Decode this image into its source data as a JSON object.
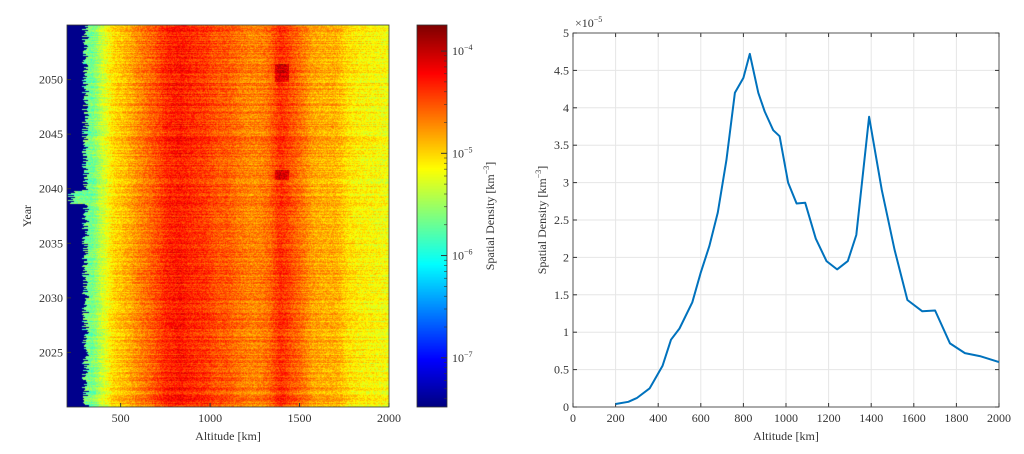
{
  "chart_data": [
    {
      "type": "heatmap",
      "xlabel": "Altitude [km]",
      "ylabel": "Year",
      "xlim": [
        200,
        2000
      ],
      "ylim": [
        2020,
        2055
      ],
      "xticks": [
        500,
        1000,
        1500,
        2000
      ],
      "yticks": [
        2025,
        2030,
        2035,
        2040,
        2045,
        2050
      ],
      "colormap": "jet",
      "colorbar": {
        "label": "Spatial Density [km^-3]",
        "label_base": "Spatial Density [km",
        "label_exp": "−3",
        "label_end": "]",
        "scale": "log",
        "clim": [
          3.3e-08,
          0.00018
        ],
        "ticks": [
          {
            "value": 0.0001,
            "base": "10",
            "exp": "-4"
          },
          {
            "value": 1e-05,
            "base": "10",
            "exp": "-5"
          },
          {
            "value": 1e-06,
            "base": "10",
            "exp": "-6"
          },
          {
            "value": 1e-07,
            "base": "10",
            "exp": "-7"
          }
        ]
      },
      "features": {
        "empty_region_below_km": 300,
        "peak_bands_km": [
          830,
          1400
        ]
      }
    },
    {
      "type": "line",
      "xlabel": "Altitude [km]",
      "ylabel": "Spatial Density [km^-3]",
      "ylabel_base": "Spatial Density [km",
      "ylabel_exp": "−3",
      "ylabel_end": "]",
      "y_multiplier": "×10",
      "y_multiplier_exp": "−5",
      "xlim": [
        0,
        2000
      ],
      "ylim": [
        0,
        5
      ],
      "grid": true,
      "xticks": [
        0,
        200,
        400,
        600,
        800,
        1000,
        1200,
        1400,
        1600,
        1800,
        2000
      ],
      "yticks": [
        "0",
        "0.5",
        "1",
        "1.5",
        "2",
        "2.5",
        "3",
        "3.5",
        "4",
        "4.5",
        "5"
      ],
      "color": "#0072BD",
      "x": [
        200,
        260,
        300,
        360,
        420,
        460,
        500,
        560,
        600,
        640,
        680,
        720,
        760,
        800,
        830,
        870,
        900,
        940,
        970,
        1010,
        1050,
        1090,
        1140,
        1190,
        1240,
        1290,
        1330,
        1390,
        1450,
        1510,
        1570,
        1640,
        1700,
        1770,
        1840,
        1910,
        2000
      ],
      "y": [
        0.04,
        0.07,
        0.12,
        0.25,
        0.55,
        0.9,
        1.05,
        1.4,
        1.8,
        2.15,
        2.6,
        3.3,
        4.2,
        4.4,
        4.72,
        4.2,
        3.95,
        3.7,
        3.62,
        3.0,
        2.72,
        2.73,
        2.25,
        1.95,
        1.84,
        1.95,
        2.3,
        3.88,
        2.9,
        2.1,
        1.43,
        1.28,
        1.29,
        0.85,
        0.72,
        0.68,
        0.6
      ]
    }
  ]
}
